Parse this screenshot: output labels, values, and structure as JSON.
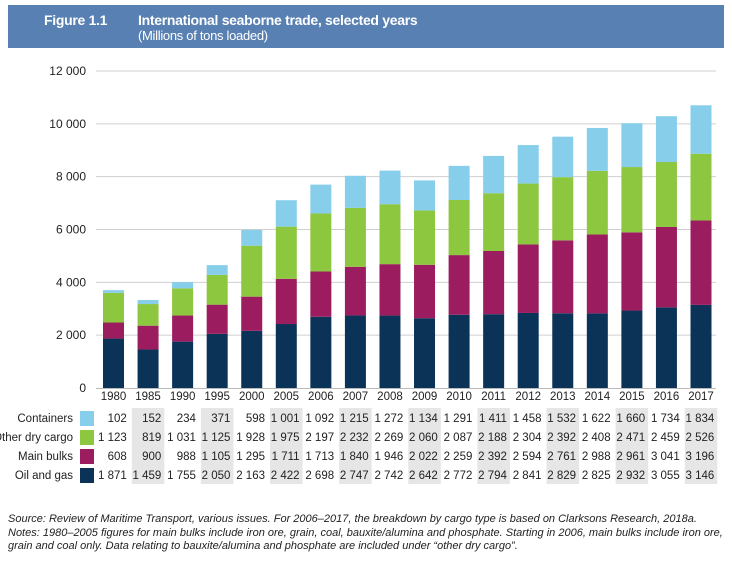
{
  "header": {
    "figure_label": "Figure 1.1",
    "title": "International seaborne trade, selected years",
    "subtitle": "(Millions of tons loaded)"
  },
  "chart_data": {
    "type": "bar",
    "stacked": true,
    "title": "International seaborne trade, selected years",
    "ylabel": "",
    "ylim": [
      0,
      12000
    ],
    "yticks": [
      0,
      2000,
      4000,
      6000,
      8000,
      10000,
      12000
    ],
    "ytick_labels": [
      "0",
      "2 000",
      "4 000",
      "6 000",
      "8 000",
      "10 000",
      "12 000"
    ],
    "grid": true,
    "legend": "table-below",
    "categories": [
      "1980",
      "1985",
      "1990",
      "1995",
      "2000",
      "2005",
      "2006",
      "2007",
      "2008",
      "2009",
      "2010",
      "2011",
      "2012",
      "2013",
      "2014",
      "2015",
      "2016",
      "2017"
    ],
    "series": [
      {
        "name": "Oil and gas",
        "color": "#0b3358",
        "values": [
          1871,
          1459,
          1755,
          2050,
          2163,
          2422,
          2698,
          2747,
          2742,
          2642,
          2772,
          2794,
          2841,
          2829,
          2825,
          2932,
          3055,
          3146
        ],
        "labels": [
          "1 871",
          "1 459",
          "1 755",
          "2 050",
          "2 163",
          "2 422",
          "2 698",
          "2 747",
          "2 742",
          "2 642",
          "2 772",
          "2 794",
          "2 841",
          "2 829",
          "2 825",
          "2 932",
          "3 055",
          "3 146"
        ]
      },
      {
        "name": "Main bulks",
        "color": "#9b1d5f",
        "values": [
          608,
          900,
          988,
          1105,
          1295,
          1711,
          1713,
          1840,
          1946,
          2022,
          2259,
          2392,
          2594,
          2761,
          2988,
          2961,
          3041,
          3196
        ],
        "labels": [
          "608",
          "900",
          "988",
          "1 105",
          "1 295",
          "1 711",
          "1 713",
          "1 840",
          "1 946",
          "2 022",
          "2 259",
          "2 392",
          "2 594",
          "2 761",
          "2 988",
          "2 961",
          "3 041",
          "3 196"
        ]
      },
      {
        "name": "Other dry cargo",
        "color": "#8dc63f",
        "values": [
          1123,
          819,
          1031,
          1125,
          1928,
          1975,
          2197,
          2232,
          2269,
          2060,
          2087,
          2188,
          2304,
          2392,
          2408,
          2471,
          2459,
          2526
        ],
        "labels": [
          "1 123",
          "819",
          "1 031",
          "1 125",
          "1 928",
          "1 975",
          "2 197",
          "2 232",
          "2 269",
          "2 060",
          "2 087",
          "2 188",
          "2 304",
          "2 392",
          "2 408",
          "2 471",
          "2 459",
          "2 526"
        ]
      },
      {
        "name": "Containers",
        "color": "#87ceeb",
        "values": [
          102,
          152,
          234,
          371,
          598,
          1001,
          1092,
          1215,
          1272,
          1134,
          1291,
          1411,
          1458,
          1532,
          1622,
          1660,
          1734,
          1834
        ],
        "labels": [
          "102",
          "152",
          "234",
          "371",
          "598",
          "1 001",
          "1 092",
          "1 215",
          "1 272",
          "1 134",
          "1 291",
          "1 411",
          "1 458",
          "1 532",
          "1 622",
          "1 660",
          "1 734",
          "1 834"
        ]
      }
    ]
  },
  "notes": {
    "source_label": "Source:",
    "source_title": "Review of Maritime Transport",
    "source_text": ", various issues. For 2006–2017, the breakdown by cargo type is based on Clarksons Research, 2018a.",
    "notes_label": "Notes:",
    "notes_text": " 1980–2005 figures for main bulks include iron ore, grain, coal, bauxite/alumina and phosphate. Starting in 2006, main bulks include iron ore, grain and coal only. Data relating to bauxite/alumina and phosphate are included under “other dry cargo”."
  }
}
